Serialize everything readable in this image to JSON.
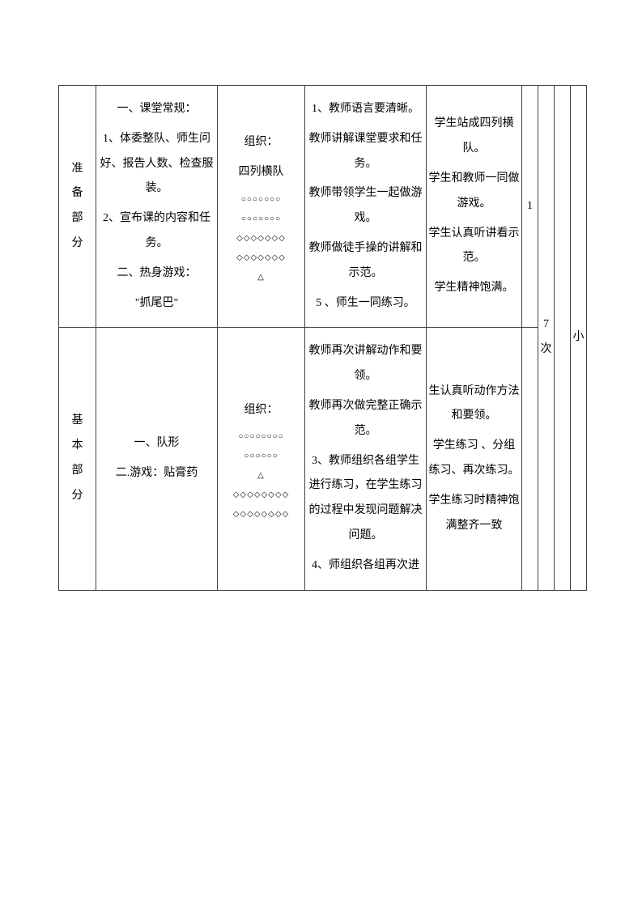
{
  "rows": [
    {
      "section_label": [
        "准",
        "备",
        "部",
        "分"
      ],
      "content": {
        "items": [
          "一、课堂常规：",
          "1、体委整队、师生问好、报告人数、检查服装。",
          "2、宣布课的内容和任务。",
          "二、热身游戏：",
          "\"抓尾巴\""
        ]
      },
      "org": {
        "label": "组织：",
        "formation": "四列横队",
        "symbols": [
          "○○○○○○○",
          "○○○○○○○",
          "◇◇◇◇◇◇◇",
          "◇◇◇◇◇◇◇",
          "△"
        ]
      },
      "teacher": [
        "1、教师语言要清晰。",
        "教师讲解课堂要求和任务。",
        "教师带领学生一起做游戏。",
        "教师做徒手操的讲解和示范。",
        "5 、师生一同练习。"
      ],
      "student": [
        "学生站成四列横队。",
        "学生和教师一同做游戏。",
        "学生认真听讲看示范。",
        "学生精神饱满。"
      ],
      "n1": "1",
      "n2_top": "7",
      "n2_bot": "次",
      "n3": "",
      "n4": "小"
    },
    {
      "section_label": [
        "基",
        "本",
        "部",
        "分"
      ],
      "content": {
        "items": [
          "一、队形",
          "二.游戏：贴膏药"
        ]
      },
      "org": {
        "label": "组织：",
        "formation": "",
        "symbols": [
          "○○○○○○○○",
          "○○○○○○",
          "△",
          "◇◇◇◇◇◇◇◇",
          "◇◇◇◇◇◇◇◇"
        ]
      },
      "teacher": [
        "教师再次讲解动作和要领。",
        "教师再次做完整正确示范。",
        "3、教师组织各组学生进行练习，在学生练习的过程中发现问题解决问题。",
        "4、师组织各组再次进"
      ],
      "student": [
        "生认真听动作方法和要领。",
        "学生练习 、分组练习、再次练习。",
        "学生练习时精神饱满整齐一致"
      ],
      "n1": "",
      "n2_top": "",
      "n2_bot": "",
      "n3": "",
      "n4": ""
    }
  ]
}
